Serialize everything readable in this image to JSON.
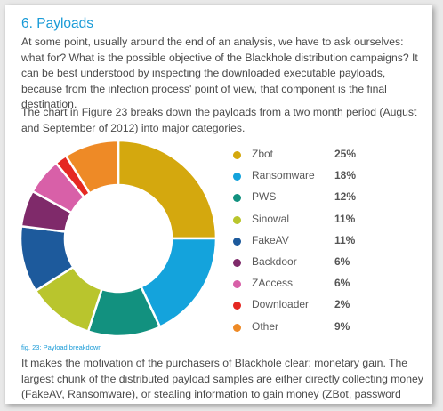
{
  "heading": "6. Payloads",
  "paragraph1": "At some point, usually around the end of an analysis, we have to ask ourselves: what for? What is the possible objective of the Blackhole distribution campaigns? It can be best understood by inspecting the downloaded executable payloads, because from the infection process' point of view, that component is the final destination.",
  "paragraph2": "The chart in Figure 23 breaks down the payloads from a two month period (August and September of 2012) into major categories.",
  "caption": "fig. 23: Payload breakdown",
  "paragraph3": "It makes the motivation of the purchasers of Blackhole clear: monetary gain. The largest chunk of the distributed payload samples are either directly collecting money (FakeAV, Ransomware), or stealing information to gain money (ZBot, password stealers), or take part",
  "chart_data": {
    "type": "pie",
    "title": "",
    "categories": [
      "Zbot",
      "Ransomware",
      "PWS",
      "Sinowal",
      "FakeAV",
      "Backdoor",
      "ZAccess",
      "Downloader",
      "Other"
    ],
    "values": [
      25,
      18,
      12,
      11,
      11,
      6,
      6,
      2,
      9
    ],
    "labels": [
      "25%",
      "18%",
      "12%",
      "11%",
      "11%",
      "6%",
      "6%",
      "2%",
      "9%"
    ],
    "colors": [
      "#d4a80e",
      "#14a3dc",
      "#12917f",
      "#b9c52d",
      "#1d5a9c",
      "#7f2a6a",
      "#d860a8",
      "#e52822",
      "#ee8a26"
    ],
    "legend": "right"
  }
}
